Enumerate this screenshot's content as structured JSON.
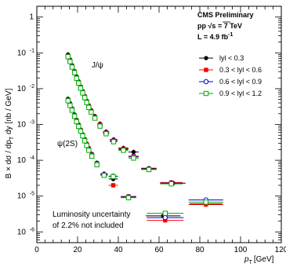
{
  "chart_data": {
    "type": "scatter",
    "header": {
      "experiment": "CMS Preliminary",
      "energy": "pp  √s = 7 TeV",
      "luminosity": "L = 4.9 fb",
      "luminosity_unit_sup": "-1"
    },
    "xlabel": "p",
    "xlabel_sub": "T",
    "xlabel_unit": "[GeV]",
    "ylabel": "B × dσ / dp",
    "ylabel_sub": "T",
    "ylabel_suffix": " dy [nb / GeV]",
    "xlim": [
      0,
      120
    ],
    "ylim": [
      5e-07,
      2
    ],
    "y_scale": "log",
    "x_ticks": [
      0,
      20,
      40,
      60,
      80,
      100,
      120
    ],
    "y_ticks": [
      {
        "value": 1,
        "label": "1"
      },
      {
        "value": 0.1,
        "label": "10",
        "exp": "-1"
      },
      {
        "value": 0.01,
        "label": "10",
        "exp": "-2"
      },
      {
        "value": 0.001,
        "label": "10",
        "exp": "-3"
      },
      {
        "value": 0.0001,
        "label": "10",
        "exp": "-4"
      },
      {
        "value": 1e-05,
        "label": "10",
        "exp": "-5"
      },
      {
        "value": 1e-06,
        "label": "10",
        "exp": "-6"
      }
    ],
    "curve_labels": [
      "J/ψ",
      "ψ(2S)"
    ],
    "annotation": [
      "Luminosity uncertainty",
      "of 2.2% not included"
    ],
    "legend_position": "top-right",
    "series": [
      {
        "name": "lyl < 0.3",
        "color": "#000000",
        "marker": "filled-circle",
        "jpsi_x": [
          15.3,
          16.3,
          17.3,
          18.5,
          19.5,
          20.5,
          21.5,
          22.5,
          23.5,
          24.5,
          25.5,
          26.7,
          28.5,
          31,
          34,
          37.7,
          42.5,
          47.5,
          55,
          67,
          83
        ],
        "jpsi_y": [
          0.09,
          0.065,
          0.045,
          0.031,
          0.022,
          0.016,
          0.0115,
          0.0085,
          0.0062,
          0.0046,
          0.0034,
          0.0025,
          0.0017,
          0.00105,
          0.00063,
          0.00038,
          0.00022,
          0.00017,
          6e-05,
          2.3e-05,
          6e-06
        ],
        "psi2s_x": [
          15.3,
          16.3,
          17.3,
          18.5,
          19.5,
          20.5,
          21.5,
          22.5,
          23.5,
          24.5,
          25.5,
          27,
          29.5,
          33,
          37.5,
          45,
          62
        ],
        "psi2s_y": [
          0.0052,
          0.0039,
          0.0028,
          0.0019,
          0.00135,
          0.001,
          0.00072,
          0.00053,
          0.00039,
          0.00029,
          0.00022,
          0.00015,
          8.5e-05,
          4.2e-05,
          3e-05,
          9.5e-06,
          2.8e-06
        ]
      },
      {
        "name": "0.3 < lyl < 0.6",
        "color": "#ff0000",
        "marker": "filled-square",
        "jpsi_x": [
          15.3,
          16.3,
          17.3,
          18.5,
          19.5,
          20.5,
          21.5,
          22.5,
          23.5,
          24.5,
          25.5,
          26.7,
          28.5,
          31,
          34,
          37.7,
          42.5,
          47.5,
          55,
          66,
          83
        ],
        "jpsi_y": [
          0.085,
          0.062,
          0.043,
          0.03,
          0.021,
          0.0152,
          0.011,
          0.0081,
          0.006,
          0.0044,
          0.0033,
          0.0024,
          0.0016,
          0.001,
          0.0006,
          0.00036,
          0.00021,
          0.00013,
          5.8e-05,
          2.4e-05,
          5.8e-06
        ],
        "psi2s_x": [
          15.3,
          16.3,
          17.3,
          18.5,
          19.5,
          20.5,
          21.5,
          22.5,
          23.5,
          24.5,
          25.5,
          27,
          29.5,
          33,
          37.5,
          45,
          63
        ],
        "psi2s_y": [
          0.005,
          0.0037,
          0.0027,
          0.0018,
          0.0013,
          0.00095,
          0.0007,
          0.00051,
          0.00038,
          0.00028,
          0.00021,
          0.000145,
          8.2e-05,
          4e-05,
          2e-05,
          9.8e-06,
          2.1e-06
        ]
      },
      {
        "name": "0.6 < lyl < 0.9",
        "color": "#0000cc",
        "marker": "open-circle",
        "jpsi_x": [
          15.3,
          16.3,
          17.3,
          18.5,
          19.5,
          20.5,
          21.5,
          22.5,
          23.5,
          24.5,
          25.5,
          26.7,
          28.5,
          31,
          34,
          37.7,
          42.5,
          47.5,
          55,
          66,
          83
        ],
        "jpsi_y": [
          0.082,
          0.06,
          0.042,
          0.029,
          0.0205,
          0.015,
          0.0108,
          0.008,
          0.0059,
          0.0043,
          0.0032,
          0.0023,
          0.00155,
          0.00095,
          0.00058,
          0.00035,
          0.0002,
          0.000125,
          5.7e-05,
          2.3e-05,
          7.8e-06
        ],
        "psi2s_x": [
          15.3,
          16.3,
          17.3,
          18.5,
          19.5,
          20.5,
          21.5,
          22.5,
          23.5,
          24.5,
          25.5,
          27,
          29.5,
          33,
          37.5,
          45,
          63
        ],
        "psi2s_y": [
          0.0048,
          0.0036,
          0.0026,
          0.0018,
          0.00125,
          0.00092,
          0.00068,
          0.0005,
          0.00037,
          0.00027,
          0.0002,
          0.00014,
          8e-05,
          4e-05,
          3.6e-05,
          9.5e-06,
          2.5e-06
        ]
      },
      {
        "name": "0.9 < lyl < 1.2",
        "color": "#00aa00",
        "marker": "open-square",
        "jpsi_x": [
          15.3,
          16.3,
          17.3,
          18.5,
          19.5,
          20.5,
          21.5,
          22.5,
          23.5,
          24.5,
          25.5,
          26.7,
          28.5,
          31,
          34,
          37.7,
          42.5,
          47.5,
          55,
          66,
          83
        ],
        "jpsi_y": [
          0.078,
          0.057,
          0.04,
          0.028,
          0.0195,
          0.0143,
          0.0103,
          0.0076,
          0.0056,
          0.0041,
          0.003,
          0.0022,
          0.0015,
          0.0009,
          0.00055,
          0.00033,
          0.00019,
          0.000115,
          5.5e-05,
          2.2e-05,
          6.8e-06
        ],
        "psi2s_x": [
          15.3,
          16.3,
          17.3,
          18.5,
          19.5,
          20.5,
          21.5,
          22.5,
          23.5,
          24.5,
          25.5,
          27,
          29.5,
          33,
          37.5,
          45,
          63
        ],
        "psi2s_y": [
          0.0046,
          0.0034,
          0.0025,
          0.0017,
          0.0012,
          0.00088,
          0.00065,
          0.00048,
          0.00035,
          0.00026,
          0.00019,
          0.00013,
          7.5e-05,
          3.8e-05,
          3.5e-05,
          9e-06,
          3.3e-06
        ]
      }
    ]
  }
}
